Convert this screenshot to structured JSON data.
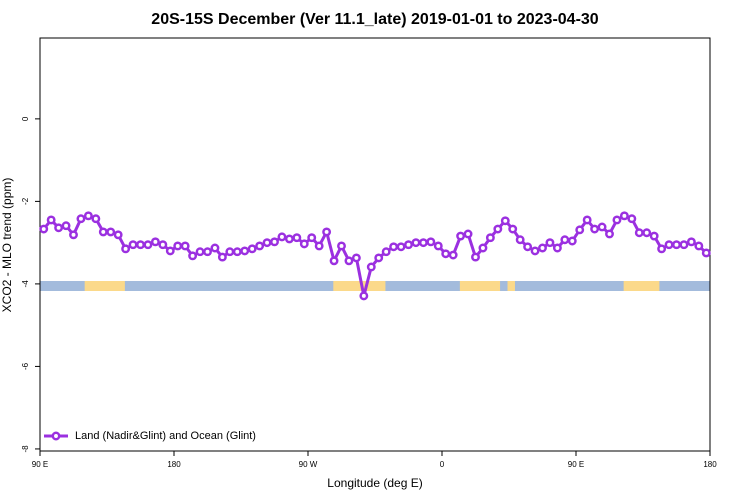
{
  "chart_data": {
    "type": "line",
    "title": "20S-15S December (Ver 11.1_late)   2019-01-01 to 2023-04-30",
    "x_label": "Longitude (deg E)",
    "y_label": "XCO2 - MLO trend (ppm)",
    "xlim": [
      90,
      540
    ],
    "xticks": [
      {
        "value": 90,
        "label": "90 E"
      },
      {
        "value": 180,
        "label": "180"
      },
      {
        "value": 270,
        "label": "90 W"
      },
      {
        "value": 360,
        "label": "0"
      },
      {
        "value": 450,
        "label": "90 E"
      },
      {
        "value": 540,
        "label": "180"
      }
    ],
    "ylim": [
      -8.05,
      1.96
    ],
    "yticks": [
      -8,
      -6,
      -4,
      -2,
      0
    ],
    "legend_position": "lower left",
    "ocean_color": "#a3bbdc",
    "land_color": "#fbd98a",
    "land_ranges": [
      [
        120,
        147
      ],
      [
        287,
        322
      ],
      [
        372,
        399
      ],
      [
        404,
        409
      ],
      [
        482,
        506
      ]
    ],
    "x": [
      92.5,
      97.5,
      102.5,
      107.5,
      112.5,
      117.5,
      122.5,
      127.5,
      132.5,
      137.5,
      142.5,
      147.5,
      152.5,
      157.5,
      162.5,
      167.5,
      172.5,
      177.5,
      182.5,
      187.5,
      192.5,
      197.5,
      202.5,
      207.5,
      212.5,
      217.5,
      222.5,
      227.5,
      232.5,
      237.5,
      242.5,
      247.5,
      252.5,
      257.5,
      262.5,
      267.5,
      272.5,
      277.5,
      282.5,
      287.5,
      292.5,
      297.5,
      302.5,
      307.5,
      312.5,
      317.5,
      322.5,
      327.5,
      332.5,
      337.5,
      342.5,
      347.5,
      352.5,
      357.5,
      362.5,
      367.5,
      372.5,
      377.5,
      382.5,
      387.5,
      392.5,
      397.5,
      402.5,
      407.5,
      412.5,
      417.5,
      422.5,
      427.5,
      432.5,
      437.5,
      442.5,
      447.5,
      452.5,
      457.5,
      462.5,
      467.5,
      472.5,
      477.5,
      482.5,
      487.5,
      492.5,
      497.5,
      502.5,
      507.5,
      512.5,
      517.5,
      522.5,
      527.5,
      532.5,
      537.5
    ],
    "series": [
      {
        "name": "Land (Nadir&Glint) and Ocean (Glint)",
        "color": "#9b30e0",
        "values": [
          -2.67,
          -2.45,
          -2.64,
          -2.59,
          -2.81,
          -2.42,
          -2.35,
          -2.42,
          -2.74,
          -2.74,
          -2.81,
          -3.15,
          -3.05,
          -3.05,
          -3.05,
          -2.98,
          -3.05,
          -3.2,
          -3.08,
          -3.08,
          -3.32,
          -3.22,
          -3.22,
          -3.13,
          -3.35,
          -3.22,
          -3.22,
          -3.2,
          -3.15,
          -3.08,
          -3.0,
          -2.98,
          -2.86,
          -2.91,
          -2.88,
          -3.03,
          -2.88,
          -3.08,
          -2.74,
          -3.44,
          -3.08,
          -3.44,
          -3.37,
          -4.29,
          -3.59,
          -3.37,
          -3.22,
          -3.1,
          -3.1,
          -3.05,
          -3.0,
          -3.0,
          -2.98,
          -3.08,
          -3.27,
          -3.3,
          -2.84,
          -2.79,
          -3.35,
          -3.13,
          -2.88,
          -2.67,
          -2.47,
          -2.67,
          -2.93,
          -3.1,
          -3.2,
          -3.13,
          -3.0,
          -3.13,
          -2.93,
          -2.96,
          -2.69,
          -2.45,
          -2.67,
          -2.62,
          -2.79,
          -2.45,
          -2.35,
          -2.42,
          -2.76,
          -2.76,
          -2.84,
          -3.15,
          -3.05,
          -3.05,
          -3.05,
          -2.98,
          -3.08,
          -3.25
        ]
      }
    ]
  }
}
